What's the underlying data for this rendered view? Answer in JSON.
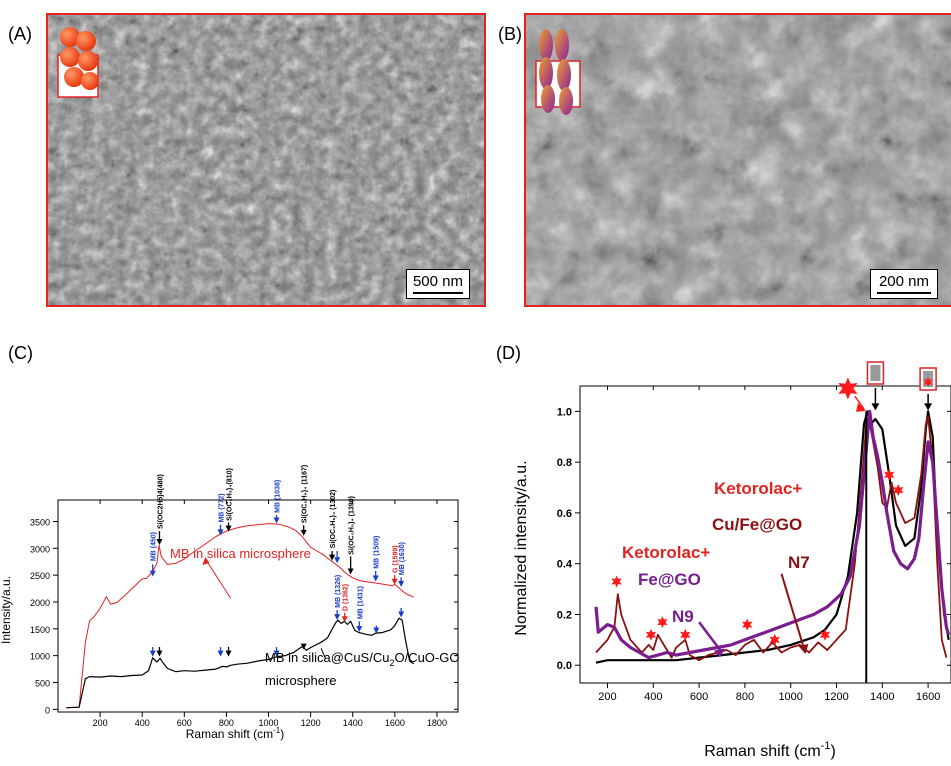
{
  "panels": {
    "A": "(A)",
    "B": "(B)",
    "C": "(C)",
    "D": "(D)"
  },
  "sem_a": {
    "scale": "500 nm"
  },
  "sem_b": {
    "scale": "200 nm"
  },
  "colors": {
    "frame": "#e32222",
    "black_series": "#000000",
    "red_series": "#e32222",
    "maroon_series": "#8b1010",
    "purple_series": "#7a1d8f",
    "blue_arrow": "#1a3cc8"
  },
  "chart_data": [
    {
      "id": "C",
      "type": "line",
      "xlabel": "Raman shift (cm",
      "xlabel_sup": "-1",
      "xlabel_tail": ")",
      "ylabel": "Intensity/a.u.",
      "xlim": [
        0,
        1900
      ],
      "ylim": [
        -50,
        3900
      ],
      "xticks": [
        200,
        400,
        600,
        800,
        1000,
        1200,
        1400,
        1600,
        1800
      ],
      "yticks": [
        0,
        500,
        1000,
        1500,
        2000,
        2500,
        3000,
        3500
      ],
      "series": [
        {
          "name": "MB in silica microsphere",
          "color": "#e32222",
          "x": [
            40,
            100,
            130,
            150,
            170,
            200,
            230,
            250,
            280,
            320,
            360,
            400,
            420,
            450,
            470,
            480,
            490,
            520,
            560,
            600,
            650,
            700,
            750,
            800,
            850,
            900,
            950,
            1000,
            1050,
            1100,
            1130,
            1160,
            1180,
            1200,
            1230,
            1260,
            1280,
            1300,
            1320,
            1340,
            1360,
            1380,
            1400,
            1430,
            1460,
            1500,
            1530,
            1560,
            1590,
            1600,
            1620,
            1640,
            1660,
            1690
          ],
          "y": [
            30,
            40,
            1250,
            1650,
            1720,
            1880,
            2100,
            1960,
            1990,
            2130,
            2280,
            2430,
            2440,
            2570,
            2720,
            3060,
            2850,
            2700,
            2720,
            2800,
            2950,
            3080,
            3220,
            3320,
            3380,
            3420,
            3440,
            3460,
            3450,
            3390,
            3330,
            3220,
            3120,
            3020,
            2950,
            2880,
            2820,
            2760,
            2700,
            2640,
            2560,
            2500,
            2450,
            2400,
            2380,
            2360,
            2340,
            2320,
            2300,
            2330,
            2260,
            2190,
            2140,
            2090
          ]
        },
        {
          "name": "MB in silica@CuS/Cu₂O/CuO-GO microsphere",
          "color": "#000000",
          "x": [
            40,
            100,
            130,
            150,
            200,
            250,
            300,
            350,
            400,
            430,
            450,
            470,
            485,
            500,
            520,
            560,
            600,
            650,
            700,
            750,
            780,
            800,
            820,
            850,
            900,
            950,
            1000,
            1040,
            1080,
            1120,
            1160,
            1180,
            1200,
            1250,
            1280,
            1300,
            1320,
            1330,
            1345,
            1360,
            1375,
            1390,
            1410,
            1430,
            1460,
            1490,
            1510,
            1540,
            1580,
            1600,
            1620,
            1635,
            1650,
            1670,
            1690
          ],
          "y": [
            30,
            40,
            570,
            610,
            600,
            620,
            610,
            630,
            640,
            720,
            960,
            880,
            950,
            860,
            760,
            700,
            720,
            710,
            730,
            750,
            800,
            790,
            820,
            840,
            860,
            900,
            930,
            980,
            1000,
            1060,
            1170,
            1100,
            1150,
            1250,
            1330,
            1480,
            1620,
            1660,
            1600,
            1640,
            1580,
            1640,
            1470,
            1430,
            1400,
            1380,
            1420,
            1430,
            1480,
            1560,
            1700,
            1660,
            1300,
            900,
            850
          ]
        }
      ],
      "legend_inline": {
        "red": "MB in silica microsphere",
        "black_l1": "MB in silica@CuS/Cu",
        "black_sub": "2",
        "black_l1b": "O/CuO-GO",
        "black_l2": "microsphere"
      },
      "annotations": {
        "a_mb450": "MB (450)",
        "a_si480": "Si(OC",
        "a_si480b": "2",
        "a_si480c": "H",
        "a_si480d": "5",
        "a_si480e": ")",
        "a_si480f": "4",
        "a_si480g": "(480)",
        "a_mb772": "MB (772)",
        "a_si810": "Si(OC₂H₅)₄(810)",
        "a_mb1038": "MB (1038)",
        "a_si1167": "Si(OC₂H₅)₄ (1167)",
        "a_si1302": "Si(OC₂H₅)₄ (1302)",
        "a_si1390": "Si(OC₂H₅)₄ (1390)",
        "a_mb1509": "MB (1509)",
        "a_g1599": "G (1599)",
        "a_mb1630": "MB (1630)",
        "a_mb1326": "MB (1326)",
        "a_d1362": "D (1362)",
        "a_mb1431": "MB (1431)"
      }
    },
    {
      "id": "D",
      "type": "line",
      "xlabel": "Raman shift (cm",
      "xlabel_sup": "-1",
      "xlabel_tail": ")",
      "ylabel": "Normalized intensity/a.u.",
      "xlim": [
        80,
        1700
      ],
      "ylim": [
        -0.07,
        1.1
      ],
      "xticks": [
        200,
        400,
        600,
        800,
        1000,
        1200,
        1400,
        1600
      ],
      "yticks": [
        0.0,
        0.2,
        0.4,
        0.6,
        0.8,
        1.0
      ],
      "ytick_labels": [
        "0.0",
        "0.2",
        "0.4",
        "0.6",
        "0.8",
        "1.0"
      ],
      "series": [
        {
          "name": "black",
          "color": "#000000",
          "x": [
            150,
            200,
            300,
            400,
            500,
            600,
            700,
            800,
            900,
            1000,
            1100,
            1150,
            1200,
            1250,
            1290,
            1320,
            1335,
            1350,
            1370,
            1400,
            1430,
            1460,
            1500,
            1540,
            1570,
            1590,
            1600,
            1620,
            1640,
            1670,
            1690
          ],
          "y": [
            0.01,
            0.02,
            0.02,
            0.02,
            0.02,
            0.03,
            0.04,
            0.05,
            0.06,
            0.08,
            0.11,
            0.14,
            0.2,
            0.35,
            0.6,
            0.95,
            1.0,
            0.95,
            0.97,
            0.93,
            0.75,
            0.55,
            0.47,
            0.5,
            0.7,
            0.93,
            1.0,
            0.9,
            0.5,
            0.2,
            0.1
          ]
        },
        {
          "name": "N7",
          "color": "#8b1010",
          "x": [
            150,
            200,
            230,
            245,
            260,
            300,
            350,
            380,
            400,
            420,
            440,
            460,
            480,
            500,
            540,
            560,
            600,
            640,
            680,
            720,
            760,
            800,
            840,
            880,
            920,
            960,
            1000,
            1040,
            1080,
            1120,
            1160,
            1200,
            1240,
            1280,
            1310,
            1330,
            1340,
            1360,
            1380,
            1400,
            1420,
            1440,
            1460,
            1480,
            1500,
            1540,
            1570,
            1590,
            1600,
            1620,
            1640,
            1660,
            1680
          ],
          "y": [
            0.05,
            0.1,
            0.15,
            0.28,
            0.2,
            0.1,
            0.05,
            0.08,
            0.06,
            0.12,
            0.09,
            0.06,
            0.03,
            0.07,
            0.1,
            0.04,
            0.02,
            0.04,
            0.05,
            0.06,
            0.04,
            0.08,
            0.1,
            0.05,
            0.09,
            0.05,
            0.07,
            0.08,
            0.05,
            0.09,
            0.06,
            0.1,
            0.14,
            0.4,
            0.72,
            0.95,
            0.98,
            0.88,
            0.78,
            0.64,
            0.62,
            0.72,
            0.64,
            0.6,
            0.56,
            0.58,
            0.75,
            0.95,
            0.98,
            0.8,
            0.4,
            0.1,
            0.03
          ]
        },
        {
          "name": "N9",
          "color": "#7a1d8f",
          "x": [
            150,
            160,
            200,
            230,
            260,
            300,
            340,
            380,
            420,
            460,
            500,
            560,
            620,
            680,
            740,
            800,
            860,
            920,
            980,
            1040,
            1100,
            1160,
            1220,
            1260,
            1300,
            1330,
            1345,
            1360,
            1380,
            1400,
            1420,
            1450,
            1480,
            1510,
            1540,
            1560,
            1580,
            1600,
            1620,
            1640,
            1660,
            1680,
            1690
          ],
          "y": [
            0.23,
            0.13,
            0.16,
            0.15,
            0.1,
            0.07,
            0.05,
            0.03,
            0.04,
            0.05,
            0.04,
            0.05,
            0.06,
            0.07,
            0.08,
            0.1,
            0.12,
            0.14,
            0.16,
            0.18,
            0.2,
            0.23,
            0.28,
            0.35,
            0.55,
            0.85,
            1.0,
            0.9,
            0.82,
            0.72,
            0.6,
            0.45,
            0.4,
            0.38,
            0.42,
            0.5,
            0.7,
            0.88,
            0.8,
            0.55,
            0.3,
            0.15,
            0.12
          ]
        }
      ],
      "labels": {
        "keto1": "Ketorolac+",
        "cufe": "Cu/Fe@GO",
        "n7": "N7",
        "keto2": "Ketorolac+",
        "fe": "Fe@GO",
        "n9": "N9"
      }
    }
  ]
}
